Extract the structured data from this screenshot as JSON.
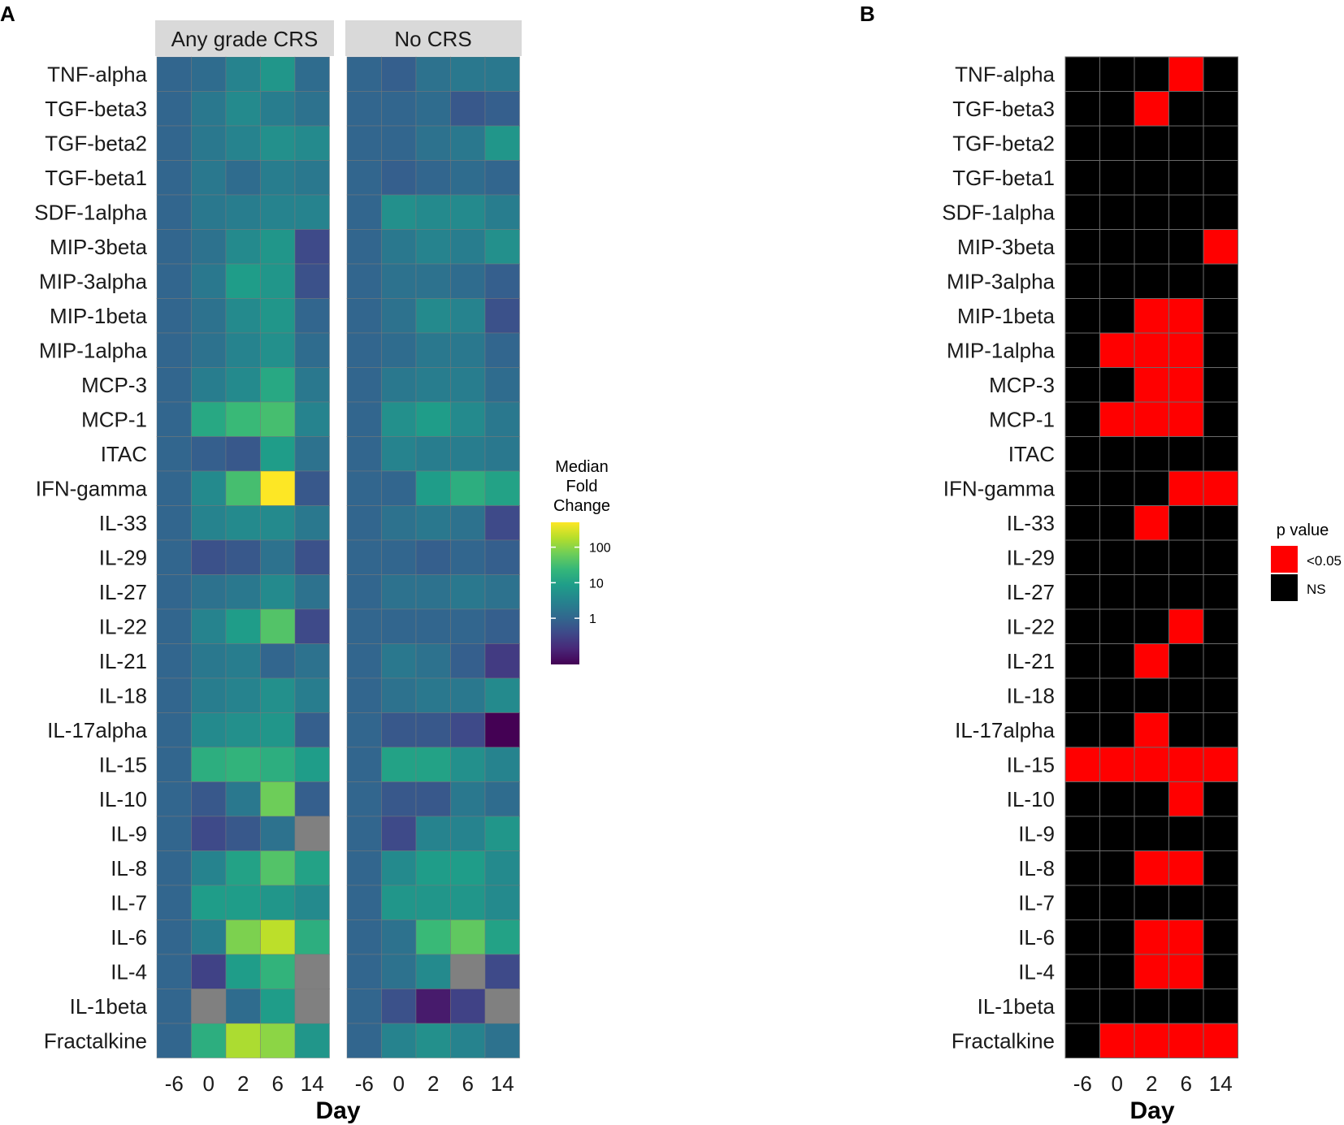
{
  "panels": {
    "A": {
      "label": "A",
      "facets": [
        "Any grade CRS",
        "No CRS"
      ],
      "legend": {
        "title_lines": [
          "Median",
          "Fold",
          "Change"
        ],
        "ticks": [
          "100",
          "10",
          "1"
        ]
      },
      "xlabel": "Day"
    },
    "B": {
      "label": "B",
      "legend": {
        "title": "p value",
        "items": [
          "<0.05",
          "NS"
        ]
      },
      "xlabel": "Day"
    }
  },
  "colors": {
    "viridis": [
      "#440154",
      "#482878",
      "#3e4989",
      "#31688e",
      "#26828e",
      "#1f9e89",
      "#35b779",
      "#6ece58",
      "#b5de2b",
      "#fde725"
    ],
    "missing": "#808080",
    "significant": "#ff0000",
    "not_significant": "#000000",
    "strip": "#d9d9d9",
    "grid": "#6b6b6b"
  },
  "chart_data": [
    {
      "type": "heatmap",
      "panel": "A",
      "title": "",
      "xlabel": "Day",
      "ylabel": "",
      "scale": "log10 median fold change",
      "color_range": [
        -1.3,
        2.7
      ],
      "legend_ticks": [
        {
          "label": "100",
          "value": 2
        },
        {
          "label": "10",
          "value": 1
        },
        {
          "label": "1",
          "value": 0
        }
      ],
      "x": [
        "-6",
        "0",
        "2",
        "6",
        "14"
      ],
      "y": [
        "TNF-alpha",
        "TGF-beta3",
        "TGF-beta2",
        "TGF-beta1",
        "SDF-1alpha",
        "MIP-3beta",
        "MIP-3alpha",
        "MIP-1beta",
        "MIP-1alpha",
        "MCP-3",
        "MCP-1",
        "ITAC",
        "IFN-gamma",
        "IL-33",
        "IL-29",
        "IL-27",
        "IL-22",
        "IL-21",
        "IL-18",
        "IL-17alpha",
        "IL-15",
        "IL-10",
        "IL-9",
        "IL-8",
        "IL-7",
        "IL-6",
        "IL-4",
        "IL-1beta",
        "Fractalkine"
      ],
      "facets": [
        {
          "name": "Any grade CRS",
          "values": [
            [
              0,
              0.1,
              0.5,
              0.8,
              0.1
            ],
            [
              0,
              0.3,
              0.6,
              0.4,
              0.2
            ],
            [
              0,
              0.3,
              0.5,
              0.7,
              0.6
            ],
            [
              0,
              0.3,
              0.1,
              0.4,
              0.3
            ],
            [
              0,
              0.3,
              0.4,
              0.5,
              0.5
            ],
            [
              0,
              0.2,
              0.6,
              0.8,
              -0.4
            ],
            [
              0,
              0.3,
              0.9,
              0.8,
              -0.3
            ],
            [
              0,
              0.2,
              0.6,
              0.8,
              0
            ],
            [
              0,
              0.2,
              0.5,
              0.7,
              0.1
            ],
            [
              0,
              0.4,
              0.6,
              1.1,
              0.3
            ],
            [
              0,
              1.1,
              1.4,
              1.5,
              0.5
            ],
            [
              0,
              -0.1,
              -0.2,
              0.9,
              0.2
            ],
            [
              0,
              0.6,
              1.5,
              2.7,
              -0.2
            ],
            [
              0,
              0.5,
              0.6,
              0.6,
              0.3
            ],
            [
              0,
              -0.3,
              -0.2,
              0.2,
              -0.3
            ],
            [
              0,
              0.2,
              0.3,
              0.6,
              0.2
            ],
            [
              0,
              0.5,
              0.9,
              1.6,
              -0.4
            ],
            [
              0,
              0.3,
              0.4,
              0,
              0.2
            ],
            [
              0,
              0.4,
              0.5,
              0.7,
              0.4
            ],
            [
              0,
              0.6,
              0.7,
              0.8,
              -0.1
            ],
            [
              0,
              1.2,
              1.3,
              1.2,
              0.9
            ],
            [
              0,
              -0.2,
              0.3,
              1.8,
              -0.1
            ],
            [
              0,
              -0.4,
              -0.2,
              0.2,
              null
            ],
            [
              0,
              0.5,
              1.0,
              1.6,
              1.0
            ],
            [
              0,
              0.9,
              0.9,
              0.8,
              0.6
            ],
            [
              0,
              0.4,
              1.9,
              2.3,
              1.2
            ],
            [
              0,
              -0.5,
              0.9,
              1.3,
              null
            ],
            [
              0,
              null,
              0.1,
              0.9,
              null
            ],
            [
              0,
              1.2,
              2.2,
              2.0,
              0.8
            ]
          ]
        },
        {
          "name": "No CRS",
          "values": [
            [
              0,
              -0.1,
              0.2,
              0.3,
              0.3
            ],
            [
              0,
              0,
              0.1,
              -0.2,
              -0.1
            ],
            [
              0,
              0,
              0.2,
              0.3,
              0.8
            ],
            [
              0,
              -0.1,
              0,
              0.1,
              0
            ],
            [
              0,
              0.7,
              0.6,
              0.6,
              0.4
            ],
            [
              0,
              0.3,
              0.5,
              0.4,
              0.7
            ],
            [
              0,
              0.2,
              0.2,
              0.1,
              -0.1
            ],
            [
              0,
              0.2,
              0.6,
              0.5,
              -0.3
            ],
            [
              0,
              0.1,
              0.3,
              0.3,
              0
            ],
            [
              0,
              0.3,
              0.4,
              0.4,
              0.1
            ],
            [
              0,
              0.7,
              0.9,
              0.6,
              0.3
            ],
            [
              0,
              0.5,
              0.4,
              0.4,
              0.3
            ],
            [
              0,
              0,
              0.9,
              1.2,
              1.0
            ],
            [
              0,
              0.2,
              0.3,
              0.2,
              -0.4
            ],
            [
              0,
              0,
              -0.1,
              0,
              -0.1
            ],
            [
              0,
              0.2,
              0.2,
              0.3,
              0.2
            ],
            [
              0,
              0,
              0,
              0,
              -0.1
            ],
            [
              0,
              0.3,
              0.2,
              -0.1,
              -0.6
            ],
            [
              0,
              0.2,
              0.3,
              0.3,
              0.6
            ],
            [
              0,
              -0.2,
              -0.2,
              -0.4,
              -1.3
            ],
            [
              0,
              1.0,
              1.0,
              0.7,
              0.5
            ],
            [
              0,
              -0.2,
              -0.2,
              0.3,
              0.1
            ],
            [
              0,
              -0.4,
              0.5,
              0.5,
              0.8
            ],
            [
              0,
              0.6,
              0.9,
              0.9,
              0.6
            ],
            [
              0,
              0.8,
              0.8,
              0.8,
              0.6
            ],
            [
              0,
              0.2,
              1.4,
              1.7,
              1.0
            ],
            [
              0,
              0.2,
              0.6,
              null,
              -0.4
            ],
            [
              0,
              -0.3,
              -1.0,
              -0.5,
              null
            ],
            [
              0,
              0.5,
              0.7,
              0.5,
              0.2
            ]
          ]
        }
      ]
    },
    {
      "type": "heatmap",
      "panel": "B",
      "title": "",
      "xlabel": "Day",
      "ylabel": "",
      "legend": [
        "<0.05",
        "NS"
      ],
      "x": [
        "-6",
        "0",
        "2",
        "6",
        "14"
      ],
      "y": [
        "TNF-alpha",
        "TGF-beta3",
        "TGF-beta2",
        "TGF-beta1",
        "SDF-1alpha",
        "MIP-3beta",
        "MIP-3alpha",
        "MIP-1beta",
        "MIP-1alpha",
        "MCP-3",
        "MCP-1",
        "ITAC",
        "IFN-gamma",
        "IL-33",
        "IL-29",
        "IL-27",
        "IL-22",
        "IL-21",
        "IL-18",
        "IL-17alpha",
        "IL-15",
        "IL-10",
        "IL-9",
        "IL-8",
        "IL-7",
        "IL-6",
        "IL-4",
        "IL-1beta",
        "Fractalkine"
      ],
      "significant": [
        [
          0,
          0,
          0,
          1,
          0
        ],
        [
          0,
          0,
          1,
          0,
          0
        ],
        [
          0,
          0,
          0,
          0,
          0
        ],
        [
          0,
          0,
          0,
          0,
          0
        ],
        [
          0,
          0,
          0,
          0,
          0
        ],
        [
          0,
          0,
          0,
          0,
          1
        ],
        [
          0,
          0,
          0,
          0,
          0
        ],
        [
          0,
          0,
          1,
          1,
          0
        ],
        [
          0,
          1,
          1,
          1,
          0
        ],
        [
          0,
          0,
          1,
          1,
          0
        ],
        [
          0,
          1,
          1,
          1,
          0
        ],
        [
          0,
          0,
          0,
          0,
          0
        ],
        [
          0,
          0,
          0,
          1,
          1
        ],
        [
          0,
          0,
          1,
          0,
          0
        ],
        [
          0,
          0,
          0,
          0,
          0
        ],
        [
          0,
          0,
          0,
          0,
          0
        ],
        [
          0,
          0,
          0,
          1,
          0
        ],
        [
          0,
          0,
          1,
          0,
          0
        ],
        [
          0,
          0,
          0,
          0,
          0
        ],
        [
          0,
          0,
          1,
          0,
          0
        ],
        [
          1,
          1,
          1,
          1,
          1
        ],
        [
          0,
          0,
          0,
          1,
          0
        ],
        [
          0,
          0,
          0,
          0,
          0
        ],
        [
          0,
          0,
          1,
          1,
          0
        ],
        [
          0,
          0,
          0,
          0,
          0
        ],
        [
          0,
          0,
          1,
          1,
          0
        ],
        [
          0,
          0,
          1,
          1,
          0
        ],
        [
          0,
          0,
          0,
          0,
          0
        ],
        [
          0,
          1,
          1,
          1,
          1
        ]
      ]
    }
  ]
}
